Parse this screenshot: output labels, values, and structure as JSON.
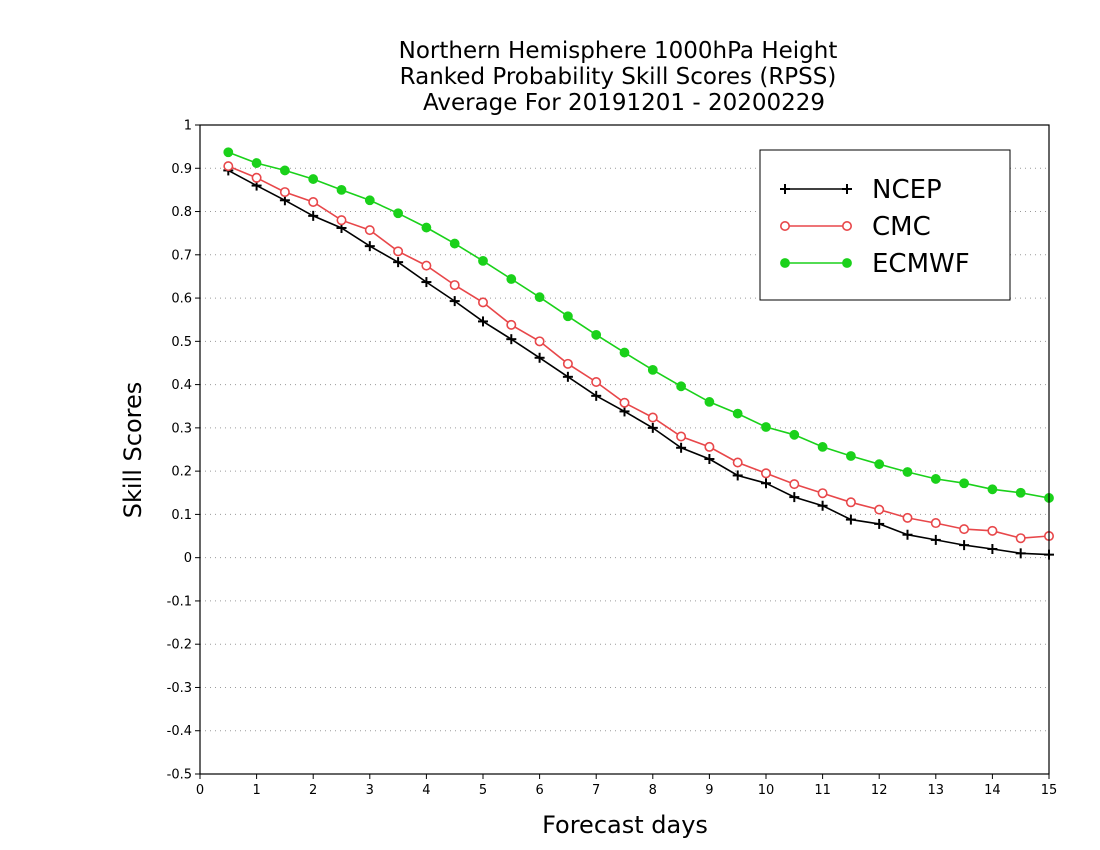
{
  "chart_data": {
    "type": "line",
    "title_lines": [
      "Northern Hemisphere 1000hPa Height",
      "Ranked Probability Skill Scores (RPSS)",
      "Average For 20191201 - 20200229"
    ],
    "xlabel": "Forecast days",
    "ylabel": "Skill Scores",
    "xlim": [
      0,
      15
    ],
    "ylim": [
      -0.5,
      1
    ],
    "x_ticks": [
      "0",
      "1",
      "2",
      "3",
      "4",
      "5",
      "6",
      "7",
      "8",
      "9",
      "10",
      "11",
      "12",
      "13",
      "14",
      "15"
    ],
    "y_ticks": [
      "1",
      "0.9",
      "0.8",
      "0.7",
      "0.6",
      "0.5",
      "0.4",
      "0.3",
      "0.2",
      "0.1",
      "0",
      "-0.1",
      "-0.2",
      "-0.3",
      "-0.4",
      "-0.5"
    ],
    "grid": "horizontal dotted",
    "legend_position": "top-right",
    "x": [
      0.5,
      1,
      1.5,
      2,
      2.5,
      3,
      3.5,
      4,
      4.5,
      5,
      5.5,
      6,
      6.5,
      7,
      7.5,
      8,
      8.5,
      9,
      9.5,
      10,
      10.5,
      11,
      11.5,
      12,
      12.5,
      13,
      13.5,
      14,
      14.5,
      15
    ],
    "series": [
      {
        "name": "NCEP",
        "color": "#000000",
        "marker": "plus",
        "values": [
          0.895,
          0.86,
          0.826,
          0.79,
          0.762,
          0.72,
          0.683,
          0.637,
          0.593,
          0.546,
          0.505,
          0.462,
          0.418,
          0.374,
          0.338,
          0.3,
          0.254,
          0.228,
          0.19,
          0.172,
          0.14,
          0.12,
          0.088,
          0.078,
          0.053,
          0.041,
          0.029,
          0.02,
          0.01,
          0.007
        ]
      },
      {
        "name": "CMC",
        "color": "#e8474a",
        "marker": "open-circle",
        "values": [
          0.905,
          0.878,
          0.845,
          0.822,
          0.78,
          0.757,
          0.708,
          0.675,
          0.63,
          0.59,
          0.538,
          0.5,
          0.448,
          0.406,
          0.358,
          0.324,
          0.28,
          0.256,
          0.22,
          0.195,
          0.17,
          0.149,
          0.128,
          0.111,
          0.092,
          0.08,
          0.066,
          0.062,
          0.045,
          0.05
        ]
      },
      {
        "name": "ECMWF",
        "color": "#1ad11a",
        "marker": "filled-circle",
        "values": [
          0.937,
          0.912,
          0.895,
          0.875,
          0.85,
          0.826,
          0.796,
          0.763,
          0.726,
          0.686,
          0.644,
          0.602,
          0.558,
          0.515,
          0.474,
          0.434,
          0.396,
          0.36,
          0.333,
          0.302,
          0.284,
          0.256,
          0.235,
          0.216,
          0.198,
          0.182,
          0.172,
          0.158,
          0.15,
          0.138
        ]
      }
    ]
  }
}
